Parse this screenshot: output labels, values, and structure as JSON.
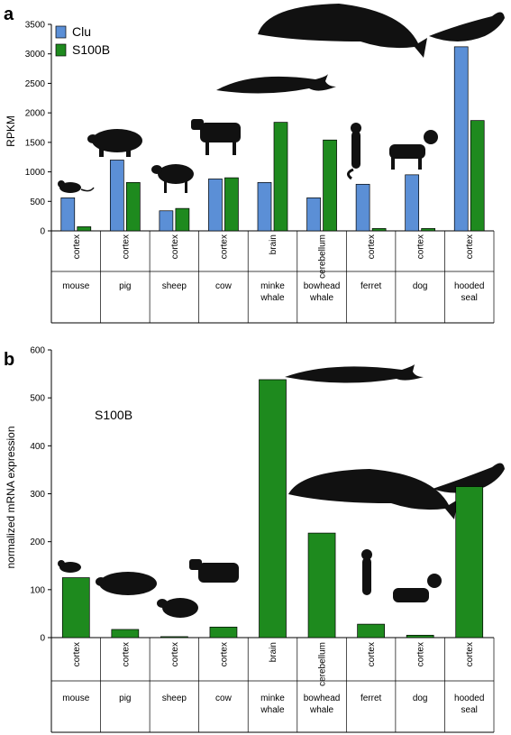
{
  "panels": {
    "a": "a",
    "b": "b"
  },
  "colors": {
    "clu": "#5b8fd6",
    "s100b": "#1e8a1e",
    "axis": "#000000"
  },
  "chart_data": [
    {
      "type": "bar",
      "panel": "a",
      "ylabel": "RPKM",
      "ylim": [
        0,
        3500
      ],
      "yticks": [
        0,
        500,
        1000,
        1500,
        2000,
        2500,
        3000,
        3500
      ],
      "categories": [
        "mouse",
        "pig",
        "sheep",
        "cow",
        "minke whale",
        "bowhead whale",
        "ferret",
        "dog",
        "hooded seal"
      ],
      "tissues": [
        "cortex",
        "cortex",
        "cortex",
        "cortex",
        "brain",
        "cerebellum",
        "cortex",
        "cortex",
        "cortex"
      ],
      "species_lines": [
        [
          "mouse"
        ],
        [
          "pig"
        ],
        [
          "sheep"
        ],
        [
          "cow"
        ],
        [
          "minke",
          "whale"
        ],
        [
          "bowhead",
          "whale"
        ],
        [
          "ferret"
        ],
        [
          "dog"
        ],
        [
          "hooded",
          "seal"
        ]
      ],
      "legend": "top-left",
      "series": [
        {
          "name": "Clu",
          "values": [
            560,
            1200,
            340,
            880,
            820,
            560,
            790,
            950,
            3120
          ]
        },
        {
          "name": "S100B",
          "values": [
            70,
            820,
            380,
            900,
            1840,
            1540,
            40,
            40,
            1870
          ]
        }
      ],
      "grid": false
    },
    {
      "type": "bar",
      "panel": "b",
      "ylabel": "normalized mRNA expression",
      "annotation": "S100B",
      "ylim": [
        0,
        600
      ],
      "yticks": [
        0,
        100,
        200,
        300,
        400,
        500,
        600
      ],
      "categories": [
        "mouse",
        "pig",
        "sheep",
        "cow",
        "minke whale",
        "bowhead whale",
        "ferret",
        "dog",
        "hooded seal"
      ],
      "tissues": [
        "cortex",
        "cortex",
        "cortex",
        "cortex",
        "brain",
        "cerebellum",
        "cortex",
        "cortex",
        "cortex"
      ],
      "species_lines": [
        [
          "mouse"
        ],
        [
          "pig"
        ],
        [
          "sheep"
        ],
        [
          "cow"
        ],
        [
          "minke",
          "whale"
        ],
        [
          "bowhead",
          "whale"
        ],
        [
          "ferret"
        ],
        [
          "dog"
        ],
        [
          "hooded",
          "seal"
        ]
      ],
      "series": [
        {
          "name": "S100B",
          "values": [
            125,
            17,
            2,
            22,
            538,
            218,
            28,
            5,
            315
          ]
        }
      ],
      "grid": false
    }
  ]
}
